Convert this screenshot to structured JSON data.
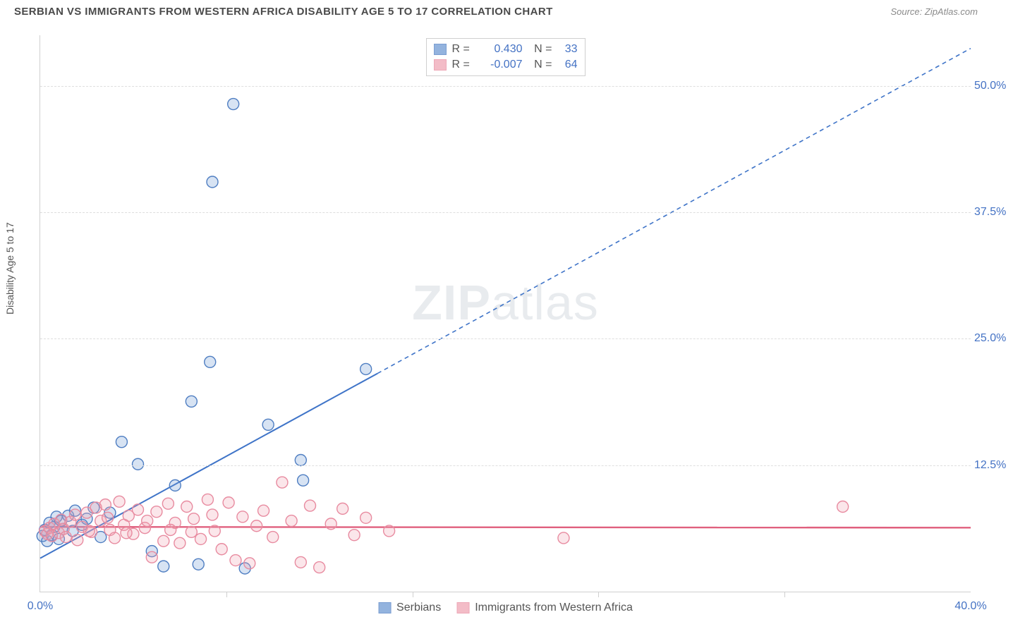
{
  "title": "SERBIAN VS IMMIGRANTS FROM WESTERN AFRICA DISABILITY AGE 5 TO 17 CORRELATION CHART",
  "source_prefix": "Source: ",
  "source_link": "ZipAtlas.com",
  "ylabel": "Disability Age 5 to 17",
  "watermark_a": "ZIP",
  "watermark_b": "atlas",
  "chart": {
    "type": "scatter",
    "xlim": [
      0,
      40
    ],
    "ylim": [
      0,
      55
    ],
    "x_ticks": [
      0,
      8,
      16,
      24,
      32,
      40
    ],
    "x_tick_labels": [
      "0.0%",
      "",
      "",
      "",
      "",
      "40.0%"
    ],
    "y_ticks": [
      12.5,
      25.0,
      37.5,
      50.0
    ],
    "y_tick_labels": [
      "12.5%",
      "25.0%",
      "37.5%",
      "50.0%"
    ],
    "grid_color": "#dedede",
    "axis_color": "#cfcfcf",
    "background_color": "#ffffff",
    "tick_label_color": "#4472c4",
    "tick_label_fontsize": 16,
    "marker_radius": 8,
    "marker_stroke_width": 1.4,
    "marker_fill_opacity": 0.28,
    "series": [
      {
        "id": "serbians",
        "label": "Serbians",
        "color": "#6f9ad3",
        "stroke": "#4f7ec2",
        "R": "0.430",
        "N": "33",
        "trend": {
          "slope": 1.26,
          "intercept": 3.3,
          "x_solid_max": 14.5,
          "color": "#3f74c8",
          "width": 2,
          "dash": "6 5"
        },
        "points": [
          [
            0.1,
            5.5
          ],
          [
            0.2,
            6.1
          ],
          [
            0.3,
            5.0
          ],
          [
            0.4,
            6.8
          ],
          [
            0.5,
            5.6
          ],
          [
            0.6,
            6.4
          ],
          [
            0.7,
            7.4
          ],
          [
            0.8,
            5.2
          ],
          [
            0.9,
            7.0
          ],
          [
            1.0,
            6.2
          ],
          [
            1.2,
            7.5
          ],
          [
            1.4,
            6.0
          ],
          [
            1.5,
            8.0
          ],
          [
            1.8,
            6.6
          ],
          [
            2.0,
            7.2
          ],
          [
            2.3,
            8.3
          ],
          [
            2.6,
            5.4
          ],
          [
            3.0,
            7.8
          ],
          [
            3.5,
            14.8
          ],
          [
            4.2,
            12.6
          ],
          [
            4.8,
            4.0
          ],
          [
            5.3,
            2.5
          ],
          [
            5.8,
            10.5
          ],
          [
            6.5,
            18.8
          ],
          [
            6.8,
            2.7
          ],
          [
            7.3,
            22.7
          ],
          [
            7.4,
            40.5
          ],
          [
            8.3,
            48.2
          ],
          [
            8.8,
            2.3
          ],
          [
            9.8,
            16.5
          ],
          [
            11.2,
            13.0
          ],
          [
            11.3,
            11.0
          ],
          [
            14.0,
            22.0
          ]
        ]
      },
      {
        "id": "immigrants",
        "label": "Immigrants from Western Africa",
        "color": "#f0a6b5",
        "stroke": "#e88ba0",
        "R": "-0.007",
        "N": "64",
        "trend": {
          "slope": -0.002,
          "intercept": 6.4,
          "x_solid_max": 40,
          "color": "#e0607e",
          "width": 2.4,
          "dash": ""
        },
        "points": [
          [
            0.2,
            6.0
          ],
          [
            0.3,
            5.7
          ],
          [
            0.4,
            6.3
          ],
          [
            0.5,
            5.5
          ],
          [
            0.6,
            6.7
          ],
          [
            0.8,
            5.8
          ],
          [
            0.9,
            7.1
          ],
          [
            1.0,
            6.2
          ],
          [
            1.1,
            5.4
          ],
          [
            1.3,
            6.9
          ],
          [
            1.5,
            7.6
          ],
          [
            1.6,
            5.1
          ],
          [
            1.8,
            6.4
          ],
          [
            2.0,
            7.8
          ],
          [
            2.2,
            5.9
          ],
          [
            2.4,
            8.3
          ],
          [
            2.6,
            7.0
          ],
          [
            2.8,
            8.6
          ],
          [
            3.0,
            6.1
          ],
          [
            3.2,
            5.3
          ],
          [
            3.4,
            8.9
          ],
          [
            3.6,
            6.6
          ],
          [
            3.8,
            7.5
          ],
          [
            4.0,
            5.7
          ],
          [
            4.2,
            8.1
          ],
          [
            4.5,
            6.3
          ],
          [
            4.8,
            3.4
          ],
          [
            5.0,
            7.9
          ],
          [
            5.3,
            5.0
          ],
          [
            5.5,
            8.7
          ],
          [
            5.8,
            6.8
          ],
          [
            6.0,
            4.8
          ],
          [
            6.3,
            8.4
          ],
          [
            6.6,
            7.2
          ],
          [
            6.9,
            5.2
          ],
          [
            7.2,
            9.1
          ],
          [
            7.5,
            6.0
          ],
          [
            7.8,
            4.2
          ],
          [
            8.1,
            8.8
          ],
          [
            8.4,
            3.1
          ],
          [
            8.7,
            7.4
          ],
          [
            9.0,
            2.8
          ],
          [
            9.3,
            6.5
          ],
          [
            9.6,
            8.0
          ],
          [
            10.0,
            5.4
          ],
          [
            10.4,
            10.8
          ],
          [
            10.8,
            7.0
          ],
          [
            11.2,
            2.9
          ],
          [
            11.6,
            8.5
          ],
          [
            12.0,
            2.4
          ],
          [
            12.5,
            6.7
          ],
          [
            13.0,
            8.2
          ],
          [
            13.5,
            5.6
          ],
          [
            14.0,
            7.3
          ],
          [
            15.0,
            6.0
          ],
          [
            22.5,
            5.3
          ],
          [
            34.5,
            8.4
          ],
          [
            2.1,
            6.0
          ],
          [
            2.9,
            7.3
          ],
          [
            3.7,
            5.8
          ],
          [
            4.6,
            7.0
          ],
          [
            5.6,
            6.1
          ],
          [
            6.5,
            5.9
          ],
          [
            7.4,
            7.6
          ]
        ]
      }
    ]
  }
}
